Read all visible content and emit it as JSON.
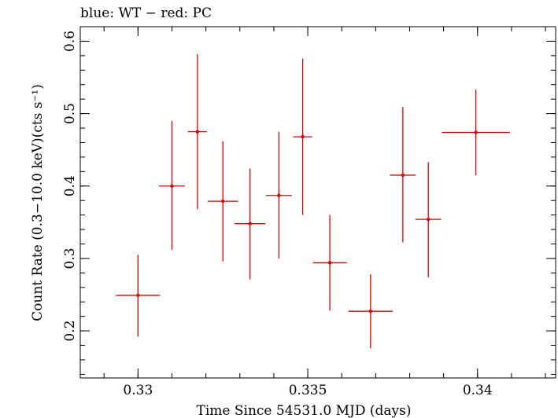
{
  "chart_data": {
    "type": "scatter",
    "title": "blue: WT − red: PC",
    "xlabel": "Time Since 54531.0 MJD (days)",
    "ylabel": "Count Rate (0.3−10.0 keV)(cts s⁻¹)",
    "xlim": [
      0.3283,
      0.3423
    ],
    "ylim": [
      0.135,
      0.62
    ],
    "x_ticks": [
      {
        "value": 0.33,
        "label": "0.33"
      },
      {
        "value": 0.335,
        "label": "0.335"
      },
      {
        "value": 0.34,
        "label": "0.34"
      }
    ],
    "y_ticks": [
      {
        "value": 0.2,
        "label": "0.2"
      },
      {
        "value": 0.3,
        "label": "0.3"
      },
      {
        "value": 0.4,
        "label": "0.4"
      },
      {
        "value": 0.5,
        "label": "0.5"
      },
      {
        "value": 0.6,
        "label": "0.6"
      }
    ],
    "x_minor_step": 0.001,
    "y_minor_step": 0.02,
    "grid": false,
    "series": [
      {
        "name": "PC",
        "color": "#e00000",
        "points": [
          {
            "x": 0.33,
            "xerr_lo": 0.00065,
            "xerr_hi": 0.00065,
            "y": 0.249,
            "y_lo": 0.192,
            "y_hi": 0.305
          },
          {
            "x": 0.331,
            "xerr_lo": 0.00038,
            "xerr_hi": 0.00038,
            "y": 0.4,
            "y_lo": 0.312,
            "y_hi": 0.49
          },
          {
            "x": 0.33175,
            "xerr_lo": 0.00028,
            "xerr_hi": 0.00028,
            "y": 0.475,
            "y_lo": 0.368,
            "y_hi": 0.582
          },
          {
            "x": 0.3325,
            "xerr_lo": 0.00045,
            "xerr_hi": 0.00045,
            "y": 0.379,
            "y_lo": 0.296,
            "y_hi": 0.462
          },
          {
            "x": 0.3333,
            "xerr_lo": 0.00045,
            "xerr_hi": 0.00045,
            "y": 0.348,
            "y_lo": 0.271,
            "y_hi": 0.424
          },
          {
            "x": 0.33415,
            "xerr_lo": 0.00038,
            "xerr_hi": 0.00038,
            "y": 0.387,
            "y_lo": 0.3,
            "y_hi": 0.475
          },
          {
            "x": 0.33485,
            "xerr_lo": 0.00028,
            "xerr_hi": 0.00028,
            "y": 0.468,
            "y_lo": 0.36,
            "y_hi": 0.576
          },
          {
            "x": 0.33565,
            "xerr_lo": 0.0005,
            "xerr_hi": 0.0005,
            "y": 0.294,
            "y_lo": 0.228,
            "y_hi": 0.36
          },
          {
            "x": 0.33685,
            "xerr_lo": 0.00065,
            "xerr_hi": 0.00065,
            "y": 0.227,
            "y_lo": 0.176,
            "y_hi": 0.278
          },
          {
            "x": 0.3378,
            "xerr_lo": 0.00038,
            "xerr_hi": 0.00038,
            "y": 0.415,
            "y_lo": 0.322,
            "y_hi": 0.509
          },
          {
            "x": 0.33855,
            "xerr_lo": 0.00038,
            "xerr_hi": 0.00038,
            "y": 0.354,
            "y_lo": 0.274,
            "y_hi": 0.433
          },
          {
            "x": 0.33995,
            "xerr_lo": 0.001,
            "xerr_hi": 0.001,
            "y": 0.474,
            "y_lo": 0.415,
            "y_hi": 0.533
          }
        ]
      }
    ]
  }
}
